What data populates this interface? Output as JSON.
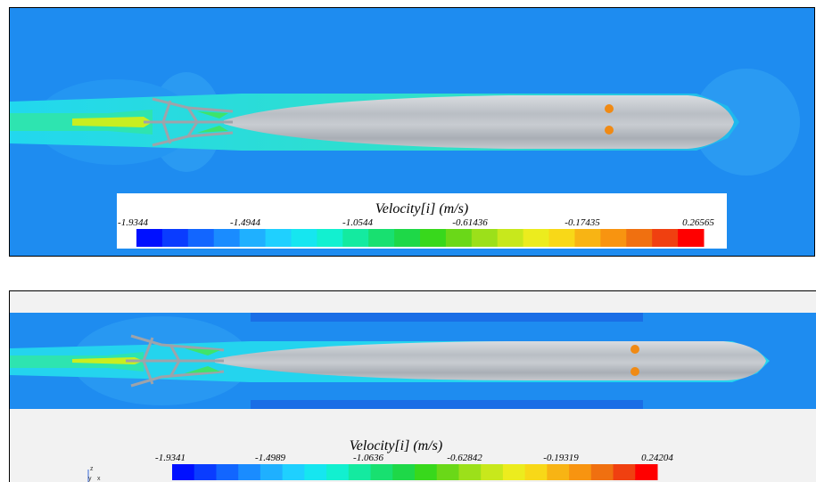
{
  "top_view": {
    "legend": {
      "title": "Velocity[i] (m/s)",
      "ticks": [
        "-1.9344",
        "-1.4944",
        "-1.0544",
        "-0.61436",
        "-0.17435",
        "0.26565"
      ]
    }
  },
  "bottom_view": {
    "legend": {
      "title": "Velocity[i] (m/s)",
      "ticks": [
        "-1.9341",
        "-1.4989",
        "-1.0636",
        "-0.62842",
        "-0.19319",
        "0.24204"
      ]
    },
    "axis_triad": {
      "z": "z",
      "y": "y",
      "x": "x"
    }
  },
  "colors": {
    "field_background": "#1e8cf0",
    "wake_cyan": "#21d6f0",
    "hull_gray": "#b8bcc2",
    "bottom_bg": "#f2f2f2",
    "probe_orange": "#f08a14",
    "colormap": [
      "#0010ff",
      "#0a3cff",
      "#1266ff",
      "#1a8cff",
      "#1fb0ff",
      "#1fd0ff",
      "#16e6f0",
      "#12f0d0",
      "#14eaa0",
      "#18e070",
      "#1ed848",
      "#38d81c",
      "#6ad818",
      "#9ce01a",
      "#c8e81c",
      "#ecec1e",
      "#f8d818",
      "#f8b414",
      "#f89410",
      "#f07010",
      "#f04010",
      "#ff0000"
    ]
  }
}
